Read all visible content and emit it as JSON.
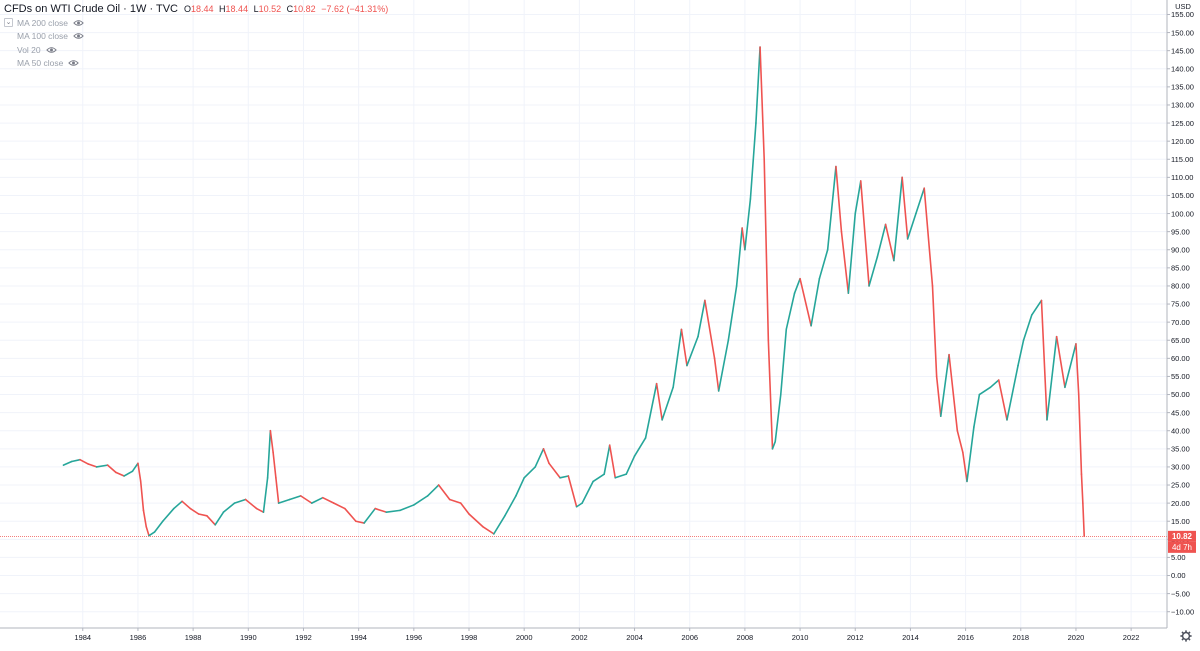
{
  "legend": {
    "symbol_title": "CFDs on WTI Crude Oil · 1W · TVC",
    "open_label": "O",
    "open": "18.44",
    "high_label": "H",
    "high": "18.44",
    "low_label": "L",
    "low": "10.52",
    "close_label": "C",
    "close": "10.82",
    "change": "−7.62 (−41.31%)",
    "indicators": [
      {
        "name": "MA 200 close",
        "icon": "eye-icon"
      },
      {
        "name": "MA 100 close",
        "icon": "eye-icon"
      },
      {
        "name": "Vol 20",
        "icon": "eye-icon"
      },
      {
        "name": "MA 50 close",
        "icon": "eye-icon"
      }
    ]
  },
  "colors": {
    "up": "#26a69a",
    "down": "#ef5350",
    "grid": "#f0f3fa",
    "axis_text": "#131722",
    "price_line": "#ef5350"
  },
  "price_tag": {
    "value": "10.82",
    "countdown": "4d 7h"
  },
  "chart_data": {
    "type": "line",
    "currency": "USD",
    "x_ticks": [
      "1984",
      "1986",
      "1988",
      "1990",
      "1992",
      "1994",
      "1996",
      "1998",
      "2000",
      "2002",
      "2004",
      "2006",
      "2008",
      "2010",
      "2012",
      "2014",
      "2016",
      "2018",
      "2020",
      "2022"
    ],
    "y_ticks": [
      "155.00",
      "150.00",
      "145.00",
      "140.00",
      "135.00",
      "130.00",
      "125.00",
      "120.00",
      "115.00",
      "110.00",
      "105.00",
      "100.00",
      "95.00",
      "90.00",
      "85.00",
      "80.00",
      "75.00",
      "70.00",
      "65.00",
      "60.00",
      "55.00",
      "50.00",
      "45.00",
      "40.00",
      "35.00",
      "30.00",
      "25.00",
      "20.00",
      "15.00",
      "10.00",
      "5.00",
      "0.00",
      "−5.00",
      "−10.00"
    ],
    "xlim": [
      1981.0,
      2023.3
    ],
    "ylim": [
      -14.5,
      159
    ],
    "grid": true,
    "last_price": 10.82,
    "series": [
      {
        "values": [
          [
            1983.3,
            30.5
          ],
          [
            1983.6,
            31.5
          ],
          [
            1983.9,
            32.0
          ],
          [
            1984.2,
            30.8
          ],
          [
            1984.5,
            30.0
          ],
          [
            1984.9,
            30.5
          ],
          [
            1985.2,
            28.5
          ],
          [
            1985.5,
            27.5
          ],
          [
            1985.8,
            28.8
          ],
          [
            1986.0,
            31.0
          ],
          [
            1986.1,
            26.0
          ],
          [
            1986.2,
            18.0
          ],
          [
            1986.3,
            13.5
          ],
          [
            1986.4,
            11.0
          ],
          [
            1986.6,
            12.0
          ],
          [
            1986.9,
            15.0
          ],
          [
            1987.3,
            18.5
          ],
          [
            1987.6,
            20.5
          ],
          [
            1987.9,
            18.5
          ],
          [
            1988.2,
            17.0
          ],
          [
            1988.5,
            16.5
          ],
          [
            1988.8,
            14.0
          ],
          [
            1989.1,
            17.5
          ],
          [
            1989.5,
            20.0
          ],
          [
            1989.9,
            21.0
          ],
          [
            1990.3,
            18.5
          ],
          [
            1990.55,
            17.5
          ],
          [
            1990.7,
            27.0
          ],
          [
            1990.8,
            40.0
          ],
          [
            1990.9,
            34.0
          ],
          [
            1991.0,
            27.0
          ],
          [
            1991.1,
            20.0
          ],
          [
            1991.5,
            21.0
          ],
          [
            1991.9,
            22.0
          ],
          [
            1992.3,
            20.0
          ],
          [
            1992.7,
            21.5
          ],
          [
            1993.1,
            20.0
          ],
          [
            1993.5,
            18.5
          ],
          [
            1993.9,
            15.0
          ],
          [
            1994.2,
            14.5
          ],
          [
            1994.6,
            18.5
          ],
          [
            1995.0,
            17.5
          ],
          [
            1995.5,
            18.0
          ],
          [
            1996.0,
            19.5
          ],
          [
            1996.5,
            22.0
          ],
          [
            1996.9,
            25.0
          ],
          [
            1997.3,
            21.0
          ],
          [
            1997.7,
            20.0
          ],
          [
            1998.0,
            17.0
          ],
          [
            1998.5,
            13.5
          ],
          [
            1998.9,
            11.5
          ],
          [
            1999.3,
            16.5
          ],
          [
            1999.7,
            22.0
          ],
          [
            2000.0,
            27.0
          ],
          [
            2000.4,
            30.0
          ],
          [
            2000.7,
            35.0
          ],
          [
            2000.9,
            31.0
          ],
          [
            2001.3,
            27.0
          ],
          [
            2001.6,
            27.5
          ],
          [
            2001.9,
            19.0
          ],
          [
            2002.1,
            20.0
          ],
          [
            2002.5,
            26.0
          ],
          [
            2002.9,
            28.0
          ],
          [
            2003.1,
            36.0
          ],
          [
            2003.3,
            27.0
          ],
          [
            2003.7,
            28.0
          ],
          [
            2004.0,
            33.0
          ],
          [
            2004.4,
            38.0
          ],
          [
            2004.8,
            53.0
          ],
          [
            2005.0,
            43.0
          ],
          [
            2005.4,
            52.0
          ],
          [
            2005.7,
            68.0
          ],
          [
            2005.9,
            58.0
          ],
          [
            2006.3,
            66.0
          ],
          [
            2006.55,
            76.0
          ],
          [
            2006.9,
            60.0
          ],
          [
            2007.05,
            51.0
          ],
          [
            2007.4,
            65.0
          ],
          [
            2007.7,
            80.0
          ],
          [
            2007.9,
            96.0
          ],
          [
            2008.0,
            90.0
          ],
          [
            2008.2,
            104.0
          ],
          [
            2008.4,
            125.0
          ],
          [
            2008.55,
            146.0
          ],
          [
            2008.7,
            115.0
          ],
          [
            2008.85,
            65.0
          ],
          [
            2009.0,
            35.0
          ],
          [
            2009.1,
            37.0
          ],
          [
            2009.3,
            50.0
          ],
          [
            2009.5,
            68.0
          ],
          [
            2009.8,
            78.0
          ],
          [
            2010.0,
            82.0
          ],
          [
            2010.4,
            69.0
          ],
          [
            2010.7,
            82.0
          ],
          [
            2011.0,
            90.0
          ],
          [
            2011.3,
            113.0
          ],
          [
            2011.5,
            95.0
          ],
          [
            2011.75,
            78.0
          ],
          [
            2012.0,
            100.0
          ],
          [
            2012.2,
            109.0
          ],
          [
            2012.5,
            80.0
          ],
          [
            2012.8,
            88.0
          ],
          [
            2013.1,
            97.0
          ],
          [
            2013.4,
            87.0
          ],
          [
            2013.7,
            110.0
          ],
          [
            2013.9,
            93.0
          ],
          [
            2014.2,
            100.0
          ],
          [
            2014.5,
            107.0
          ],
          [
            2014.8,
            80.0
          ],
          [
            2014.95,
            55.0
          ],
          [
            2015.1,
            44.0
          ],
          [
            2015.4,
            61.0
          ],
          [
            2015.7,
            40.0
          ],
          [
            2015.9,
            34.0
          ],
          [
            2016.05,
            26.0
          ],
          [
            2016.3,
            41.0
          ],
          [
            2016.5,
            50.0
          ],
          [
            2016.9,
            52.0
          ],
          [
            2017.2,
            54.0
          ],
          [
            2017.5,
            43.0
          ],
          [
            2017.9,
            58.0
          ],
          [
            2018.1,
            65.0
          ],
          [
            2018.4,
            72.0
          ],
          [
            2018.75,
            76.0
          ],
          [
            2018.95,
            43.0
          ],
          [
            2019.3,
            66.0
          ],
          [
            2019.6,
            52.0
          ],
          [
            2019.9,
            61.0
          ],
          [
            2020.0,
            64.0
          ],
          [
            2020.1,
            50.0
          ],
          [
            2020.2,
            28.0
          ],
          [
            2020.25,
            20.0
          ],
          [
            2020.3,
            10.82
          ]
        ]
      }
    ]
  }
}
